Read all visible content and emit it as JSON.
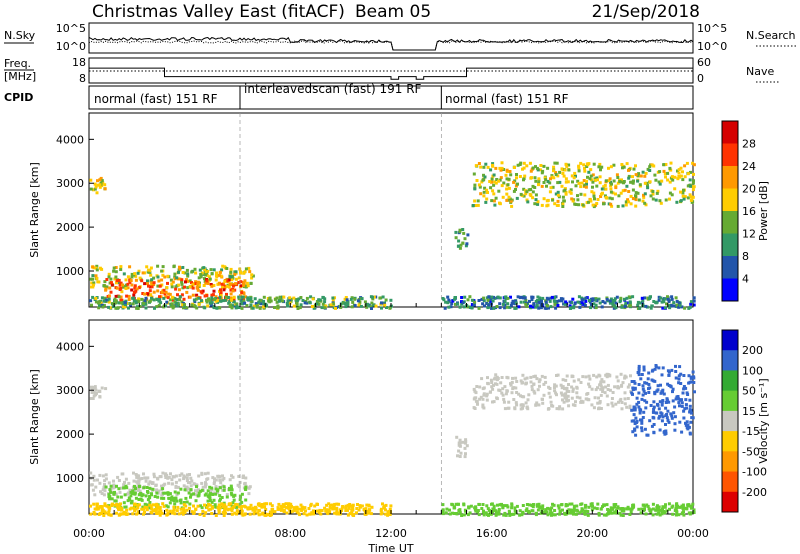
{
  "header": {
    "title": "Christmas Valley East (fitACF)",
    "beam": "Beam 05",
    "date": "21/Sep/2018"
  },
  "noise_panel": {
    "left_label": "N.Sky",
    "right_label": "N.Search",
    "left_ticks": [
      "10^5",
      "10^0"
    ],
    "right_ticks": [
      "10^5",
      "10^0"
    ]
  },
  "freq_panel": {
    "left_label_1": "Freq.",
    "left_label_2": "[MHz]",
    "right_label": "Nave",
    "left_ticks": [
      "18",
      "8"
    ],
    "right_ticks": [
      "60",
      "0"
    ]
  },
  "cpid_panel": {
    "label": "CPID",
    "modes": [
      {
        "text": "normal (fast) 151 RF",
        "start_hour": 0
      },
      {
        "text": "interleavedscan (fast) 191 RF",
        "start_hour": 6
      },
      {
        "text": "normal (fast) 151 RF",
        "start_hour": 14
      }
    ]
  },
  "colorbars": {
    "power": {
      "label": "Power [dB]",
      "ticks": [
        "28",
        "24",
        "20",
        "16",
        "12",
        "8",
        "4"
      ],
      "colors": [
        "#d50000",
        "#ff3300",
        "#ff9900",
        "#ffcc00",
        "#66aa33",
        "#339966",
        "#2255aa",
        "#0000ff"
      ]
    },
    "velocity": {
      "label": "Velocity [m s⁻¹]",
      "ticks": [
        "200",
        "100",
        "50",
        "15",
        "-15",
        "-50",
        "-100",
        "-200"
      ],
      "colors": [
        "#0000cc",
        "#3366cc",
        "#33aa33",
        "#66cc33",
        "#c8c8c0",
        "#ffcc00",
        "#ff9900",
        "#ff5500",
        "#dd0000"
      ]
    }
  },
  "chart_data": [
    {
      "type": "heatmap",
      "name": "Power",
      "ylabel": "Slant Range [km]",
      "xlabel": "Time UT",
      "x_ticks": [
        "00:00",
        "04:00",
        "08:00",
        "12:00",
        "16:00",
        "20:00",
        "00:00"
      ],
      "y_ticks": [
        1000,
        2000,
        3000,
        4000
      ],
      "xlim_hours": [
        0,
        24
      ],
      "ylim_km": [
        180,
        4600
      ],
      "regions": [
        {
          "t0": 0.0,
          "t1": 0.6,
          "r0": 2800,
          "r1": 3150,
          "value": 18
        },
        {
          "t0": 0.0,
          "t1": 6.5,
          "r0": 650,
          "r1": 1150,
          "value": 16
        },
        {
          "t0": 0.6,
          "t1": 6.2,
          "r0": 350,
          "r1": 850,
          "value": 24
        },
        {
          "t0": 0.0,
          "t1": 12.0,
          "r0": 180,
          "r1": 450,
          "value": 12
        },
        {
          "t0": 14.0,
          "t1": 24.0,
          "r0": 180,
          "r1": 450,
          "value": 8
        },
        {
          "t0": 15.2,
          "t1": 24.0,
          "r0": 2500,
          "r1": 3500,
          "value": 16
        },
        {
          "t0": 14.5,
          "t1": 15.0,
          "r0": 1500,
          "r1": 2000,
          "value": 10
        }
      ]
    },
    {
      "type": "heatmap",
      "name": "Velocity",
      "ylabel": "Slant Range [km]",
      "xlabel": "Time UT",
      "x_ticks": [
        "00:00",
        "04:00",
        "08:00",
        "12:00",
        "16:00",
        "20:00",
        "00:00"
      ],
      "y_ticks": [
        1000,
        2000,
        3000,
        4000
      ],
      "xlim_hours": [
        0,
        24
      ],
      "ylim_km": [
        180,
        4600
      ],
      "regions": [
        {
          "t0": 0.0,
          "t1": 0.6,
          "r0": 2800,
          "r1": 3150,
          "value": 0
        },
        {
          "t0": 0.0,
          "t1": 6.5,
          "r0": 650,
          "r1": 1150,
          "value": 0
        },
        {
          "t0": 0.6,
          "t1": 6.2,
          "r0": 350,
          "r1": 850,
          "value": 20
        },
        {
          "t0": 0.0,
          "t1": 12.0,
          "r0": 180,
          "r1": 450,
          "value": -30
        },
        {
          "t0": 14.0,
          "t1": 24.0,
          "r0": 180,
          "r1": 450,
          "value": 20
        },
        {
          "t0": 15.2,
          "t1": 21.5,
          "r0": 2600,
          "r1": 3400,
          "value": 0
        },
        {
          "t0": 21.5,
          "t1": 24.0,
          "r0": 2000,
          "r1": 3600,
          "value": 150
        },
        {
          "t0": 14.5,
          "t1": 15.0,
          "r0": 1500,
          "r1": 2000,
          "value": 0
        }
      ]
    }
  ],
  "time_axis_label": "Time UT"
}
